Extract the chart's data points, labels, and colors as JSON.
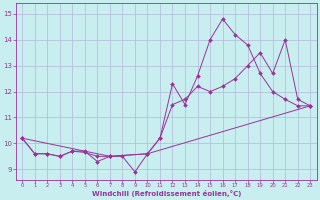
{
  "xlabel": "Windchill (Refroidissement éolien,°C)",
  "bg_color": "#c8eef0",
  "grid_color": "#b0b8d8",
  "line_color": "#993399",
  "xlim": [
    -0.5,
    23.5
  ],
  "ylim": [
    8.6,
    15.4
  ],
  "xticks": [
    0,
    1,
    2,
    3,
    4,
    5,
    6,
    7,
    8,
    9,
    10,
    11,
    12,
    13,
    14,
    15,
    16,
    17,
    18,
    19,
    20,
    21,
    22,
    23
  ],
  "yticks": [
    9,
    10,
    11,
    12,
    13,
    14,
    15
  ],
  "series1_x": [
    0,
    1,
    2,
    3,
    4,
    5,
    6,
    7,
    8,
    9,
    10,
    11,
    12,
    13,
    14,
    15,
    16,
    17,
    18,
    19,
    20,
    21,
    22,
    23
  ],
  "series1_y": [
    10.2,
    9.6,
    9.6,
    9.5,
    9.7,
    9.7,
    9.3,
    9.5,
    9.5,
    8.9,
    9.6,
    10.2,
    12.3,
    11.5,
    12.6,
    14.0,
    14.8,
    14.2,
    13.8,
    12.7,
    12.0,
    11.7,
    11.45,
    11.45
  ],
  "series2_x": [
    0,
    1,
    2,
    3,
    4,
    5,
    6,
    7,
    10,
    11,
    12,
    13,
    14,
    15,
    16,
    17,
    18,
    19,
    20,
    21,
    22,
    23
  ],
  "series2_y": [
    10.2,
    9.6,
    9.6,
    9.5,
    9.7,
    9.65,
    9.5,
    9.5,
    9.6,
    10.2,
    11.5,
    11.7,
    12.2,
    12.0,
    12.2,
    12.5,
    13.0,
    13.5,
    12.7,
    14.0,
    11.7,
    11.45
  ],
  "series3_x": [
    0,
    7,
    10,
    23
  ],
  "series3_y": [
    10.2,
    9.5,
    9.6,
    11.45
  ]
}
